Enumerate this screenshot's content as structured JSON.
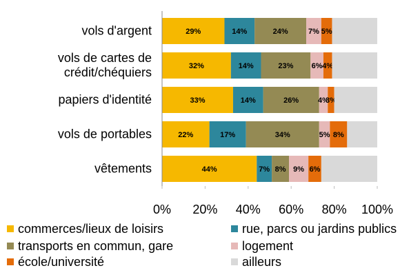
{
  "chart_data": {
    "type": "stacked_barh",
    "categories": [
      "vols d'argent",
      "vols de cartes de crédit/chéquiers",
      "papiers d'identité",
      "vols de portables",
      "vêtements"
    ],
    "series": [
      {
        "name": "commerces/lieux de loisirs",
        "color": "#f6b800",
        "values": [
          29,
          32,
          33,
          22,
          44
        ],
        "value_labels": [
          "29%",
          "32%",
          "33%",
          "22%",
          "44%"
        ]
      },
      {
        "name": "rue, parcs ou jardins publics",
        "color": "#2d879c",
        "values": [
          14,
          14,
          14,
          17,
          7
        ],
        "value_labels": [
          "14%",
          "14%",
          "14%",
          "17%",
          "7%"
        ]
      },
      {
        "name": "transports en commun, gare",
        "color": "#948a54",
        "values": [
          24,
          23,
          26,
          34,
          8
        ],
        "value_labels": [
          "24%",
          "23%",
          "26%",
          "34%",
          "8%"
        ]
      },
      {
        "name": "logement",
        "color": "#e6b9b8",
        "values": [
          7,
          6,
          4,
          5,
          9
        ],
        "value_labels": [
          "7%",
          "6%",
          "4%",
          "5%",
          "9%"
        ]
      },
      {
        "name": "école/université",
        "color": "#e46c0a",
        "values": [
          5,
          4,
          3,
          8,
          6
        ],
        "value_labels": [
          "5%",
          "4%",
          "3%",
          "8%",
          "6%"
        ]
      },
      {
        "name": "ailleurs",
        "color": "#d9d9d9",
        "values": [
          21,
          21,
          20,
          14,
          26
        ]
      }
    ],
    "xlim": [
      0,
      100
    ],
    "xticks": [
      {
        "value": 0,
        "label": "0%"
      },
      {
        "value": 20,
        "label": "20%"
      },
      {
        "value": 40,
        "label": "40%"
      },
      {
        "value": 60,
        "label": "60%"
      },
      {
        "value": 80,
        "label": "80%"
      },
      {
        "value": 100,
        "label": "100%"
      }
    ],
    "grid": false
  }
}
